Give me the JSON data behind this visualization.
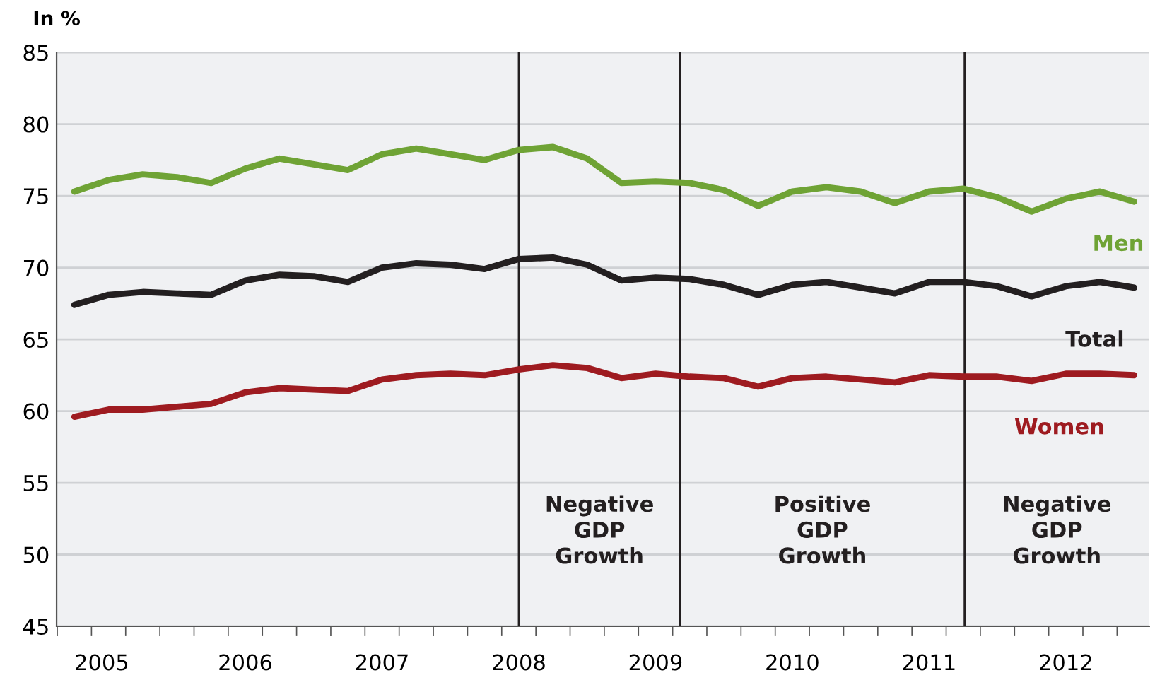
{
  "chart_data": {
    "type": "line",
    "ylabel": "In %",
    "x": [
      2005.0,
      2005.25,
      2005.5,
      2005.75,
      2006.0,
      2006.25,
      2006.5,
      2006.75,
      2007.0,
      2007.25,
      2007.5,
      2007.75,
      2008.0,
      2008.25,
      2008.5,
      2008.75,
      2009.0,
      2009.25,
      2009.5,
      2009.75,
      2010.0,
      2010.25,
      2010.5,
      2010.75,
      2011.0,
      2011.25,
      2011.5,
      2011.75,
      2012.0,
      2012.25,
      2012.5,
      2012.75
    ],
    "series": [
      {
        "name": "Men",
        "color": "#6fa335",
        "values": [
          75.3,
          76.1,
          76.5,
          76.3,
          75.9,
          76.9,
          77.6,
          77.2,
          76.8,
          77.9,
          78.3,
          77.9,
          77.5,
          78.2,
          78.4,
          77.6,
          75.9,
          76.0,
          75.9,
          75.4,
          74.3,
          75.3,
          75.6,
          75.3,
          74.5,
          75.3,
          75.5,
          74.9,
          73.9,
          74.8,
          75.3,
          74.6
        ]
      },
      {
        "name": "Total",
        "color": "#231f20",
        "values": [
          67.4,
          68.1,
          68.3,
          68.2,
          68.1,
          69.1,
          69.5,
          69.4,
          69.0,
          70.0,
          70.3,
          70.2,
          69.9,
          70.6,
          70.7,
          70.2,
          69.1,
          69.3,
          69.2,
          68.8,
          68.1,
          68.8,
          69.0,
          68.6,
          68.2,
          69.0,
          69.0,
          68.7,
          68.0,
          68.7,
          69.0,
          68.6
        ]
      },
      {
        "name": "Women",
        "color": "#9e1b20",
        "values": [
          59.6,
          60.1,
          60.1,
          60.3,
          60.5,
          61.3,
          61.6,
          61.5,
          61.4,
          62.2,
          62.5,
          62.6,
          62.5,
          62.9,
          63.2,
          63.0,
          62.3,
          62.6,
          62.4,
          62.3,
          61.7,
          62.3,
          62.4,
          62.2,
          62.0,
          62.5,
          62.4,
          62.4,
          62.1,
          62.6,
          62.6,
          62.5
        ]
      }
    ],
    "xlim": [
      2004.87,
      2012.86
    ],
    "xticks": [
      {
        "value": 2004.875,
        "label": null
      },
      {
        "value": 2005.125,
        "label": null
      },
      {
        "value": 2005.375,
        "label": null
      },
      {
        "value": 2005.625,
        "label": null
      },
      {
        "value": 2005.875,
        "label": null
      },
      {
        "value": 2006.125,
        "label": null
      },
      {
        "value": 2006.375,
        "label": null
      },
      {
        "value": 2006.625,
        "label": null
      },
      {
        "value": 2006.875,
        "label": null
      },
      {
        "value": 2007.125,
        "label": null
      },
      {
        "value": 2007.375,
        "label": null
      },
      {
        "value": 2007.625,
        "label": null
      },
      {
        "value": 2007.875,
        "label": null
      },
      {
        "value": 2008.125,
        "label": null
      },
      {
        "value": 2008.375,
        "label": null
      },
      {
        "value": 2008.625,
        "label": null
      },
      {
        "value": 2008.875,
        "label": null
      },
      {
        "value": 2009.125,
        "label": null
      },
      {
        "value": 2009.375,
        "label": null
      },
      {
        "value": 2009.625,
        "label": null
      },
      {
        "value": 2009.875,
        "label": null
      },
      {
        "value": 2010.125,
        "label": null
      },
      {
        "value": 2010.375,
        "label": null
      },
      {
        "value": 2010.625,
        "label": null
      },
      {
        "value": 2010.875,
        "label": null
      },
      {
        "value": 2011.125,
        "label": null
      },
      {
        "value": 2011.375,
        "label": null
      },
      {
        "value": 2011.625,
        "label": null
      },
      {
        "value": 2011.875,
        "label": null
      },
      {
        "value": 2012.125,
        "label": null
      },
      {
        "value": 2012.375,
        "label": null
      },
      {
        "value": 2012.625,
        "label": null
      },
      {
        "value": 2005.2,
        "label": "2005"
      },
      {
        "value": 2006.25,
        "label": "2006"
      },
      {
        "value": 2007.25,
        "label": "2007"
      },
      {
        "value": 2008.25,
        "label": "2008"
      },
      {
        "value": 2009.25,
        "label": "2009"
      },
      {
        "value": 2010.25,
        "label": "2010"
      },
      {
        "value": 2011.25,
        "label": "2011"
      },
      {
        "value": 2012.25,
        "label": "2012"
      }
    ],
    "ylim": [
      45,
      85
    ],
    "yticks": [
      45,
      50,
      55,
      60,
      65,
      70,
      75,
      80,
      85
    ],
    "grid": "y",
    "legend": false,
    "marker": "none",
    "line_style": "solid",
    "ref_lines": [
      {
        "axis": "x",
        "value": 2008.25,
        "color": "#231f20"
      },
      {
        "axis": "x",
        "value": 2009.43,
        "color": "#231f20"
      },
      {
        "axis": "x",
        "value": 2011.51,
        "color": "#231f20"
      }
    ],
    "annotations": [
      "Negative\nGDP\nGrowth",
      "Positive\nGDP\nGrowth",
      "Negative\nGDP\nGrowth"
    ]
  }
}
